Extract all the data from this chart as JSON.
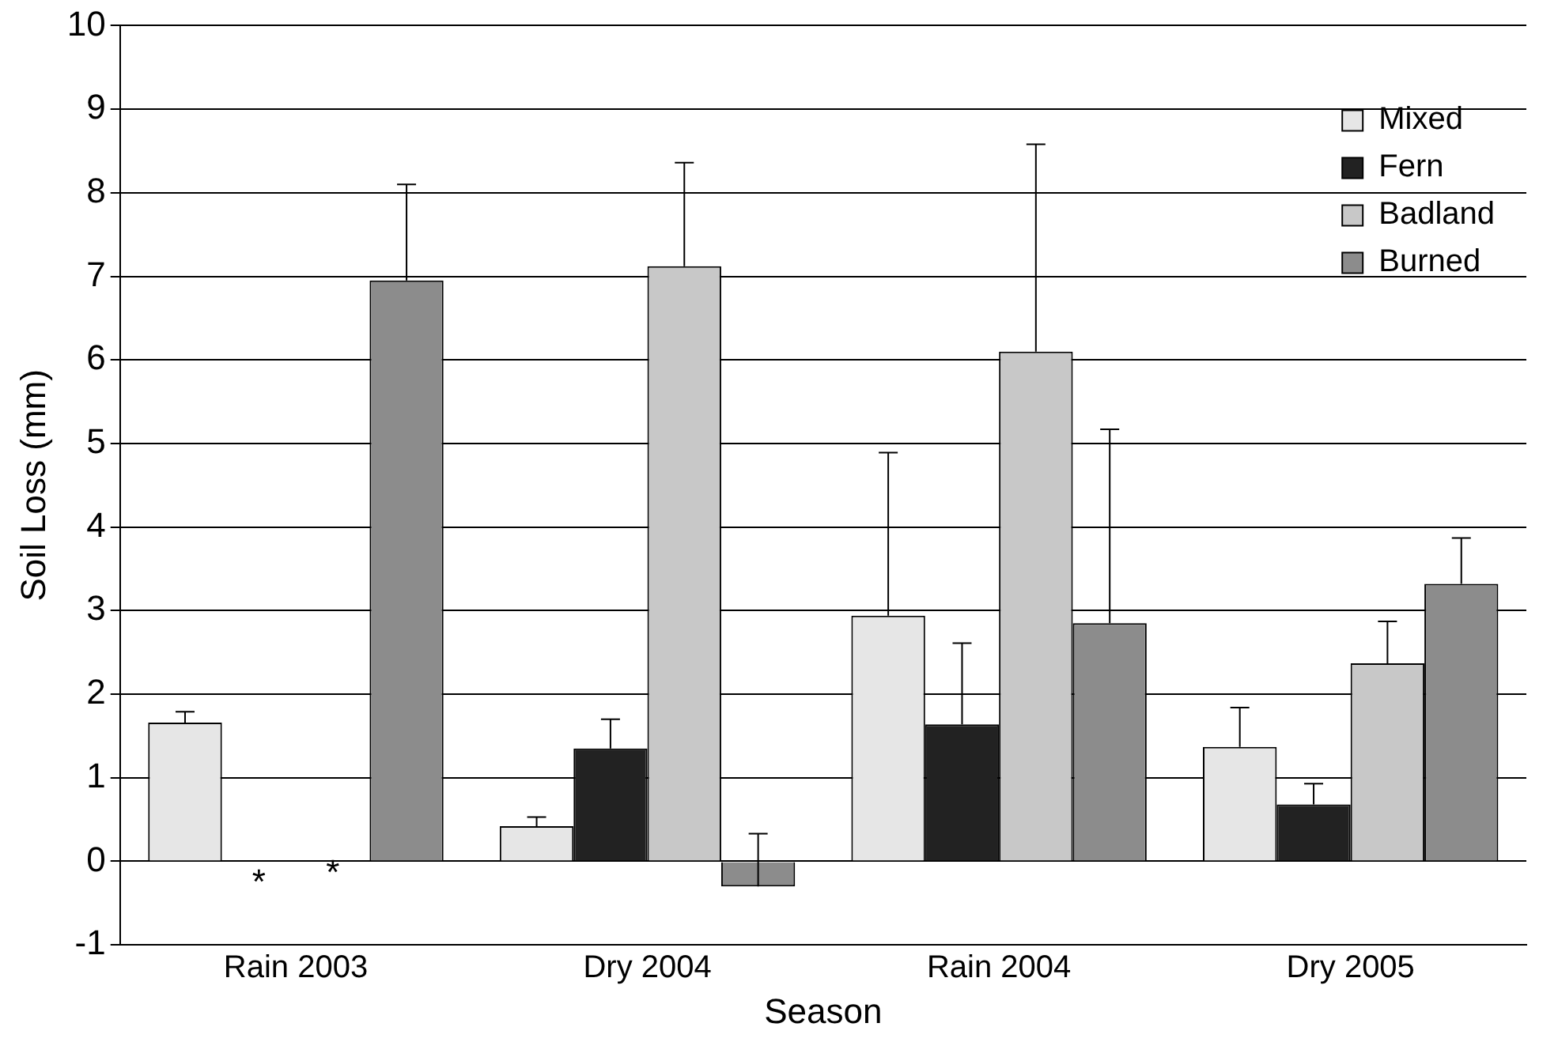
{
  "chart_data": {
    "type": "bar",
    "xlabel": "Season",
    "ylabel": "Soil Loss (mm)",
    "categories": [
      "Rain 2003",
      "Dry 2004",
      "Rain 2004",
      "Dry 2005"
    ],
    "series": [
      {
        "name": "Mixed",
        "color": "#e6e6e6",
        "values": [
          1.66,
          0.42,
          2.94,
          1.37
        ],
        "errors": [
          [
            1.66,
            1.79
          ],
          [
            0.42,
            0.53
          ],
          [
            2.94,
            4.89
          ],
          [
            1.37,
            1.84
          ]
        ]
      },
      {
        "name": "Fern",
        "color": "#222222",
        "values": [
          null,
          1.35,
          1.64,
          0.68
        ],
        "errors": [
          null,
          [
            1.35,
            1.7
          ],
          [
            1.64,
            2.61
          ],
          [
            0.68,
            0.93
          ]
        ]
      },
      {
        "name": "Badland",
        "color": "#c8c8c8",
        "values": [
          null,
          7.12,
          6.1,
          2.37
        ],
        "errors": [
          null,
          [
            7.12,
            8.36
          ],
          [
            6.1,
            8.58
          ],
          [
            2.37,
            2.87
          ]
        ]
      },
      {
        "name": "Burned",
        "color": "#8c8c8c",
        "values": [
          6.95,
          -0.3,
          2.85,
          3.32
        ],
        "errors": [
          [
            6.95,
            8.1
          ],
          [
            -0.3,
            0.33
          ],
          [
            2.85,
            5.17
          ],
          [
            3.32,
            3.87
          ]
        ]
      }
    ],
    "annotations": [
      "*",
      "*"
    ],
    "ylim": [
      -1,
      10
    ],
    "yticks": [
      -1,
      0,
      1,
      2,
      3,
      4,
      5,
      6,
      7,
      8,
      9,
      10
    ],
    "grid": "y",
    "legend": "top right"
  }
}
